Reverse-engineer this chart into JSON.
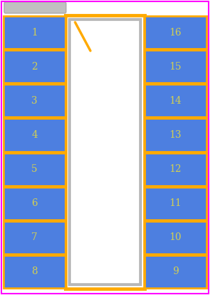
{
  "bg_color": "#ffffff",
  "border_color": "#ff00ff",
  "pin_color": "#4d7fe0",
  "pin_text_color": "#d4d050",
  "body_fill": "#ffffff",
  "body_edge_color": "#b8b8b8",
  "pad_edge_color": "#ffaa00",
  "pin1_marker_color": "#ffaa00",
  "n_pins_per_side": 8,
  "left_pin_labels": [
    "1",
    "2",
    "3",
    "4",
    "5",
    "6",
    "7",
    "8"
  ],
  "right_pin_labels": [
    "16",
    "15",
    "14",
    "13",
    "12",
    "11",
    "10",
    "9"
  ],
  "notch_bar_color": "#c0c0c0",
  "notch_bar_edge": "#aaaaaa"
}
